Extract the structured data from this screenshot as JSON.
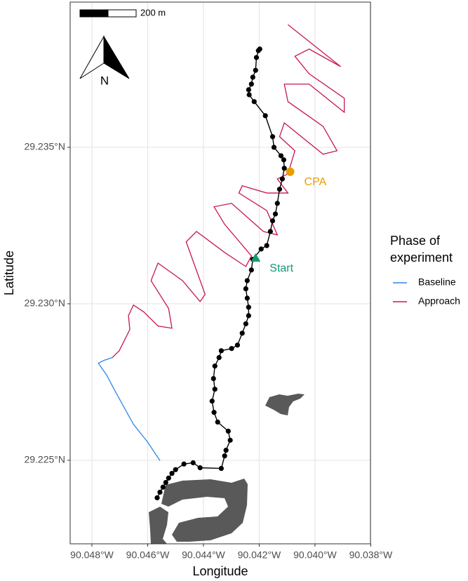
{
  "chart_data": {
    "type": "track-map",
    "xlabel": "Longitude",
    "ylabel": "Latitude",
    "xlim": [
      -90.04878,
      -90.03801
    ],
    "ylim": [
      29.22233,
      29.23964
    ],
    "xticks": [
      {
        "value": -90.048,
        "label": "90.048°W"
      },
      {
        "value": -90.046,
        "label": "90.046°W"
      },
      {
        "value": -90.044,
        "label": "90.044°W"
      },
      {
        "value": -90.042,
        "label": "90.042°W"
      },
      {
        "value": -90.04,
        "label": "90.040°W"
      },
      {
        "value": -90.038,
        "label": "90.038°W"
      }
    ],
    "yticks": [
      {
        "value": 29.225,
        "label": "29.225°N"
      },
      {
        "value": 29.23,
        "label": "29.230°N"
      },
      {
        "value": 29.235,
        "label": "29.235°N"
      }
    ],
    "grid": true,
    "legend_title": "Phase of experiment",
    "scale_bar_label": "200 m",
    "north_label": "N",
    "series": [
      {
        "name": "Baseline",
        "color": "#2f86e6",
        "x": [
          -90.04556,
          -90.04601,
          -90.04651,
          -90.04689,
          -90.04727,
          -90.04747,
          -90.04777,
          -90.04757,
          -90.04727
        ],
        "y": [
          29.22499,
          29.22559,
          29.22615,
          29.22676,
          29.22738,
          29.22772,
          29.2281,
          29.22819,
          29.22828
        ]
      },
      {
        "name": "Approach",
        "color": "#c8174f",
        "x": [
          -90.04727,
          -90.04702,
          -90.04664,
          -90.04669,
          -90.04651,
          -90.04614,
          -90.04563,
          -90.04513,
          -90.04525,
          -90.04588,
          -90.04563,
          -90.04475,
          -90.04412,
          -90.04394,
          -90.0443,
          -90.04462,
          -90.04425,
          -90.04324,
          -90.04248,
          -90.04228,
          -90.04324,
          -90.04362,
          -90.04299,
          -90.04185,
          -90.04135,
          -90.04173,
          -90.04273,
          -90.04261,
          -90.04173,
          -90.04097,
          -90.04135,
          -90.04097,
          -90.04072,
          -90.04127,
          -90.0411,
          -90.03971,
          -90.03921,
          -90.03971,
          -90.04097,
          -90.0411,
          -90.04021,
          -90.03895,
          -90.03895,
          -90.04021,
          -90.04072,
          -90.04021,
          -90.03908,
          -90.04097
        ],
        "y": [
          29.22828,
          29.2285,
          29.22918,
          29.22962,
          29.22996,
          29.22974,
          29.22929,
          29.22922,
          29.22985,
          29.23074,
          29.2313,
          29.23074,
          29.23007,
          29.2303,
          29.23119,
          29.23198,
          29.23231,
          29.23164,
          29.23119,
          29.23153,
          29.23254,
          29.2331,
          29.23321,
          29.23231,
          29.2322,
          29.23298,
          29.23354,
          29.23377,
          29.23354,
          29.23354,
          29.23399,
          29.23415,
          29.23489,
          29.23534,
          29.23578,
          29.23478,
          29.23489,
          29.23567,
          29.23646,
          29.23702,
          29.23702,
          29.23612,
          29.23657,
          29.23735,
          29.23791,
          29.23814,
          29.23758,
          29.23892
        ]
      },
      {
        "color": "#000000",
        "markers": true,
        "x": [
          -90.04566,
          -90.04556,
          -90.04545,
          -90.04535,
          -90.04525,
          -90.04513,
          -90.045,
          -90.0447,
          -90.04437,
          -90.04412,
          -90.04336,
          -90.04324,
          -90.04319,
          -90.04304,
          -90.04311,
          -90.04349,
          -90.04362,
          -90.04369,
          -90.04359,
          -90.04364,
          -90.04359,
          -90.04344,
          -90.04336,
          -90.04299,
          -90.04278,
          -90.04261,
          -90.04248,
          -90.04238,
          -90.04238,
          -90.04243,
          -90.04248,
          -90.04243,
          -90.04228,
          -90.04223,
          -90.04193,
          -90.04173,
          -90.0416,
          -90.04152,
          -90.04142,
          -90.04135,
          -90.04127,
          -90.04117,
          -90.0411,
          -90.04112,
          -90.04122,
          -90.04147,
          -90.04152,
          -90.04178,
          -90.04218,
          -90.04236,
          -90.04238,
          -90.04228,
          -90.04223,
          -90.04213,
          -90.0421,
          -90.04203,
          -90.04198
        ],
        "y": [
          29.2238,
          29.22398,
          29.22414,
          29.22429,
          29.22443,
          29.22458,
          29.2247,
          29.22488,
          29.22492,
          29.22476,
          29.22474,
          29.22514,
          29.22532,
          29.22564,
          29.22593,
          29.22622,
          29.22653,
          29.22689,
          29.22727,
          29.22761,
          29.22801,
          29.22828,
          29.2285,
          29.22857,
          29.22868,
          29.22906,
          29.22936,
          29.22962,
          29.22989,
          29.23018,
          29.23048,
          29.23074,
          29.23108,
          29.23142,
          29.23175,
          29.23186,
          29.23231,
          29.23265,
          29.23287,
          29.23321,
          29.23366,
          29.23399,
          29.23433,
          29.2346,
          29.23473,
          29.235,
          29.23534,
          29.23601,
          29.23646,
          29.23668,
          29.23684,
          29.23702,
          29.23724,
          29.23746,
          29.23787,
          29.23809,
          29.23814
        ]
      }
    ],
    "points": [
      {
        "label": "CPA",
        "shape": "circle",
        "color": "#e69f00",
        "x": -90.04089,
        "y": 29.23422
      },
      {
        "label": "Start",
        "shape": "triangle",
        "color": "#139a74",
        "x": -90.04213,
        "y": 29.23146
      }
    ]
  }
}
